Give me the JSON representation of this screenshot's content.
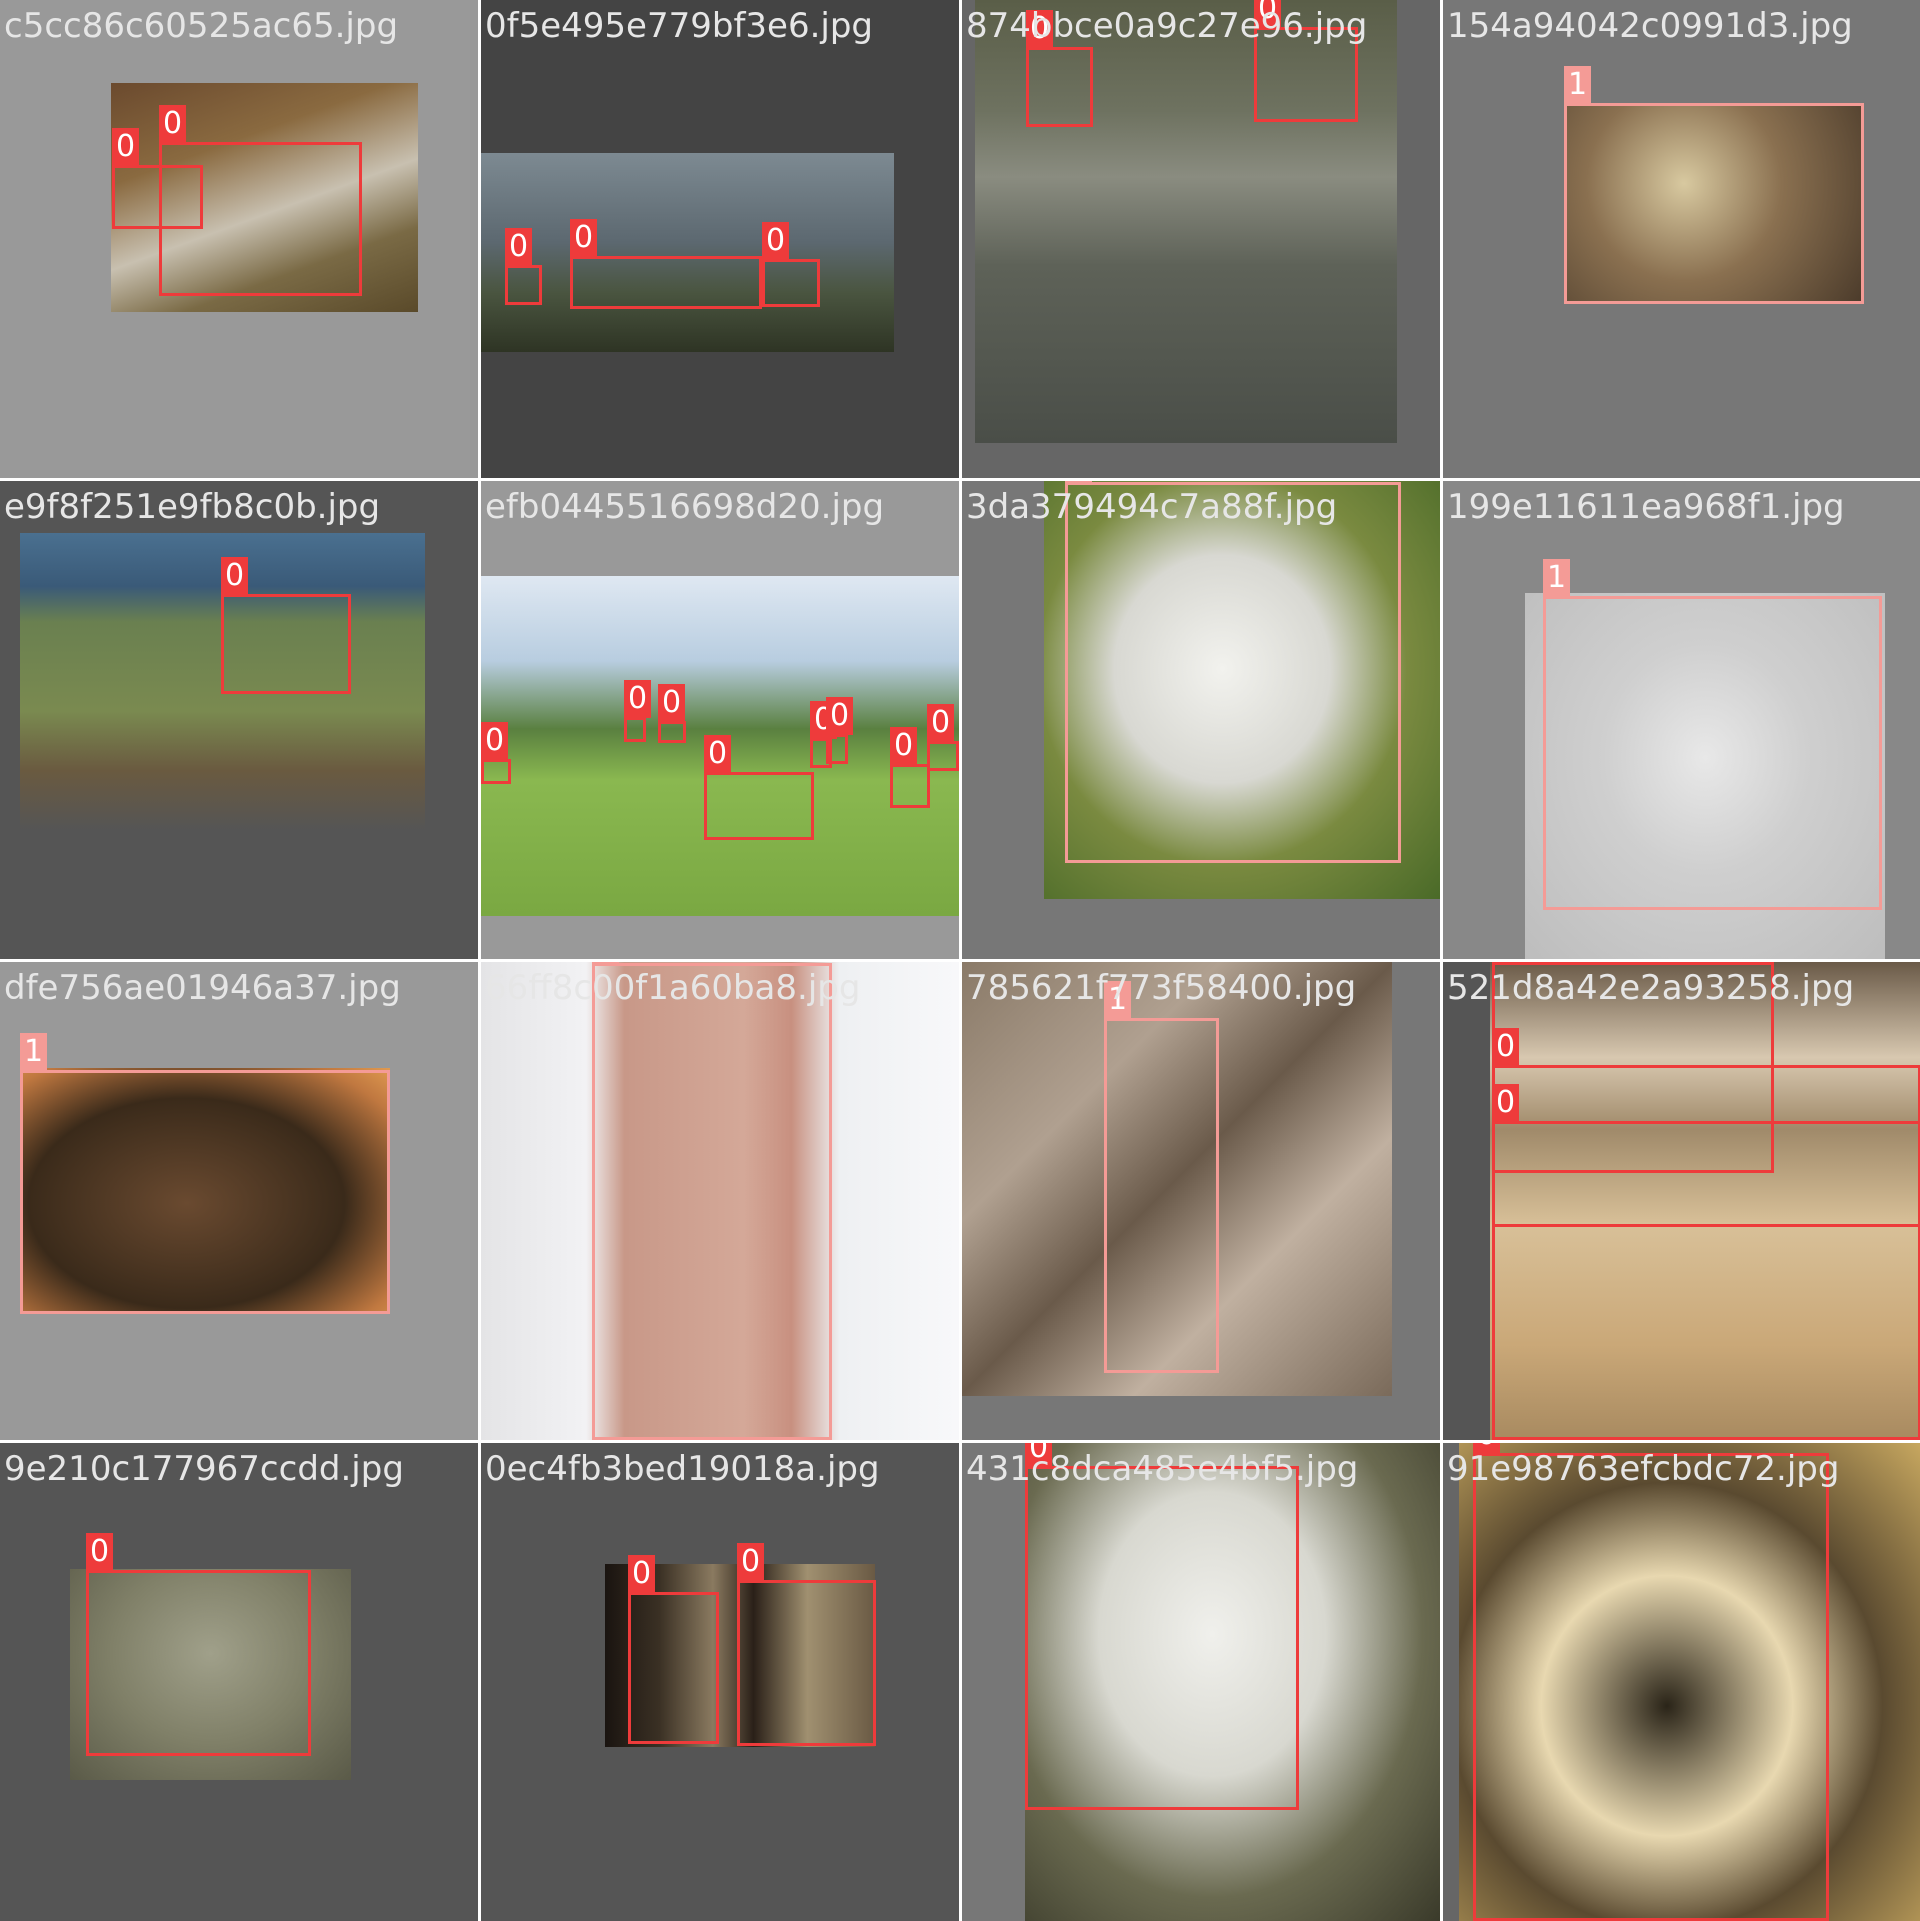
{
  "colors": {
    "class_0": "#ee3b3b",
    "class_1": "#f49b96",
    "filename_text": "#e6e6e6"
  },
  "tiles": [
    {
      "filename": "c5cc86c60525ac65.jpg",
      "background": "#999999",
      "boxes": [
        {
          "label": "0"
        },
        {
          "label": "0"
        }
      ]
    },
    {
      "filename": "0f5e495e779bf3e6.jpg",
      "background": "#444444",
      "boxes": [
        {
          "label": "0"
        },
        {
          "label": "0"
        },
        {
          "label": "0"
        }
      ]
    },
    {
      "filename": "874bbce0a9c27e96.jpg",
      "background": "#666666",
      "boxes": [
        {
          "label": "0"
        },
        {
          "label": "0"
        }
      ]
    },
    {
      "filename": "154a94042c0991d3.jpg",
      "background": "#777777",
      "boxes": [
        {
          "label": "1"
        }
      ]
    },
    {
      "filename": "e9f8f251e9fb8c0b.jpg",
      "background": "#555555",
      "boxes": [
        {
          "label": "0"
        }
      ]
    },
    {
      "filename": "efb0445516698d20.jpg",
      "background": "#999999",
      "boxes": [
        {
          "label": "0"
        },
        {
          "label": "0"
        },
        {
          "label": "0"
        },
        {
          "label": "0"
        },
        {
          "label": "0"
        },
        {
          "label": "0"
        },
        {
          "label": "0"
        },
        {
          "label": "0"
        }
      ]
    },
    {
      "filename": "3da379494c7a88f.jpg",
      "background": "#777777",
      "boxes": [
        {
          "label": "1"
        }
      ]
    },
    {
      "filename": "199e11611ea968f1.jpg",
      "background": "#888888",
      "boxes": [
        {
          "label": "1"
        }
      ]
    },
    {
      "filename": "dfe756ae01946a37.jpg",
      "background": "#999999",
      "boxes": [
        {
          "label": "1"
        }
      ]
    },
    {
      "filename": "66ff8c00f1a60ba8.jpg",
      "background": "#888888",
      "boxes": [
        {
          "label": "1"
        }
      ]
    },
    {
      "filename": "785621f773f58400.jpg",
      "background": "#777777",
      "boxes": [
        {
          "label": "1"
        }
      ]
    },
    {
      "filename": "521d8a42e2a93258.jpg",
      "background": "#555555",
      "boxes": [
        {
          "label": "0"
        },
        {
          "label": "0"
        },
        {
          "label": "0"
        }
      ]
    },
    {
      "filename": "9e210c177967ccdd.jpg",
      "background": "#555555",
      "boxes": [
        {
          "label": "0"
        }
      ]
    },
    {
      "filename": "0ec4fb3bed19018a.jpg",
      "background": "#555555",
      "boxes": [
        {
          "label": "0"
        },
        {
          "label": "0"
        }
      ]
    },
    {
      "filename": "431c8dca485e4bf5.jpg",
      "background": "#777777",
      "boxes": [
        {
          "label": "0"
        }
      ]
    },
    {
      "filename": "91e98763efcbdc72.jpg",
      "background": "#666666",
      "boxes": [
        {
          "label": "0"
        }
      ]
    }
  ]
}
